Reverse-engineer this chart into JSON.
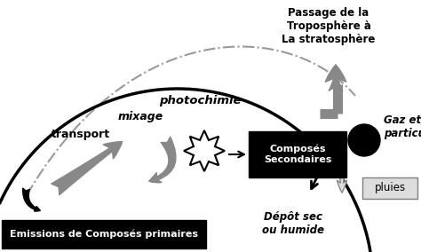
{
  "bg_color": "#ffffff",
  "box_primary_text": "Emissions de Composés primaires",
  "box_secondary_text": "Composés\nSecondaires",
  "box_primary_color": "#000000",
  "box_secondary_color": "#000000",
  "text_white": "#ffffff",
  "label_transport": "transport",
  "label_mixage": "mixage",
  "label_photochimie": "photochimie",
  "label_passage": "Passage de la\nTroposphère à\nLa stratosphère",
  "label_depot": "Dépôt sec\nou humide",
  "label_gaz": "Gaz et\nparticule",
  "label_pluies": "pluies",
  "pluies_box_color": "#dddddd",
  "gray_arrow": "#888888",
  "gray_light": "#aaaaaa",
  "arc_ground_color": "#000000",
  "arc_dash_color": "#888888"
}
